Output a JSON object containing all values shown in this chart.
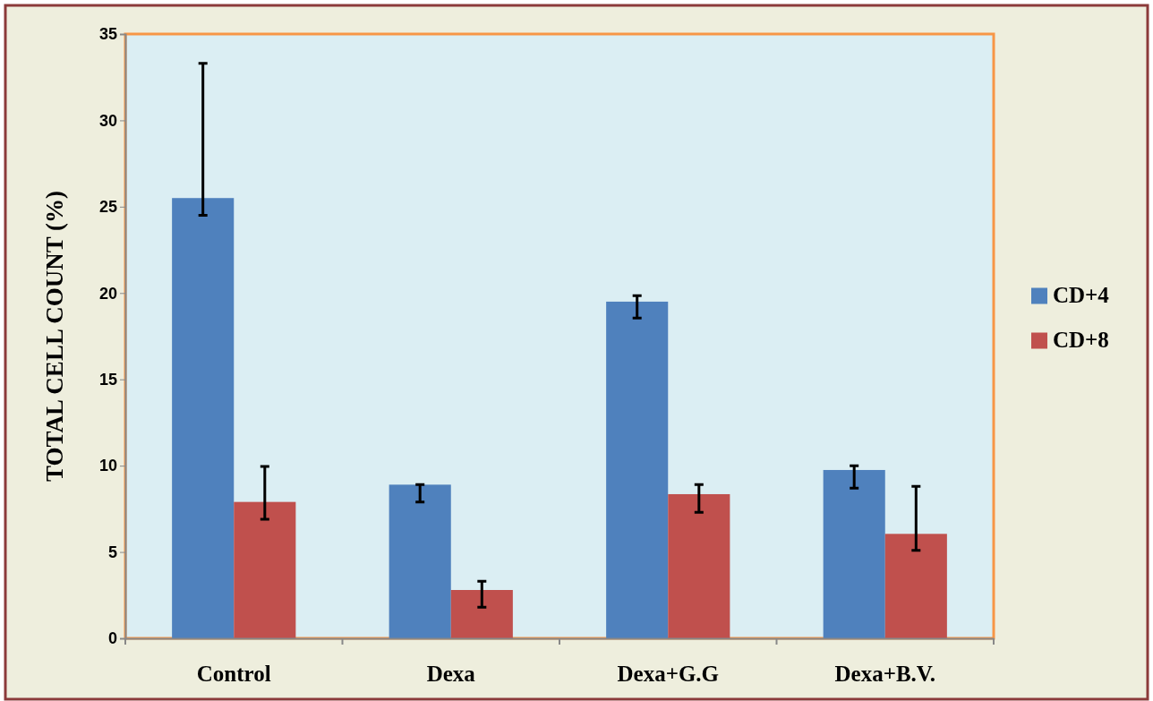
{
  "chart_data": {
    "type": "bar",
    "ylabel": "TOTAL CELL COUNT (%)",
    "categories": [
      "Control",
      "Dexa",
      "Dexa+G.G",
      "Dexa+B.V."
    ],
    "series": [
      {
        "name": "CD+4",
        "color": "#4f81bd",
        "values": [
          25.5,
          8.9,
          19.5,
          9.75
        ],
        "errors": [
          [
            24.5,
            33.3
          ],
          [
            7.9,
            8.9
          ],
          [
            18.55,
            19.85
          ],
          [
            8.7,
            10.0
          ]
        ]
      },
      {
        "name": "CD+8",
        "color": "#c0504d",
        "values": [
          7.9,
          2.8,
          8.35,
          6.05
        ],
        "errors": [
          [
            6.9,
            9.95
          ],
          [
            1.8,
            3.3
          ],
          [
            7.3,
            8.9
          ],
          [
            5.1,
            8.8
          ]
        ]
      }
    ],
    "ylim": [
      0,
      35
    ],
    "yticks": [
      0,
      5,
      10,
      15,
      20,
      25,
      30,
      35
    ],
    "grid": false,
    "legend": "right"
  }
}
